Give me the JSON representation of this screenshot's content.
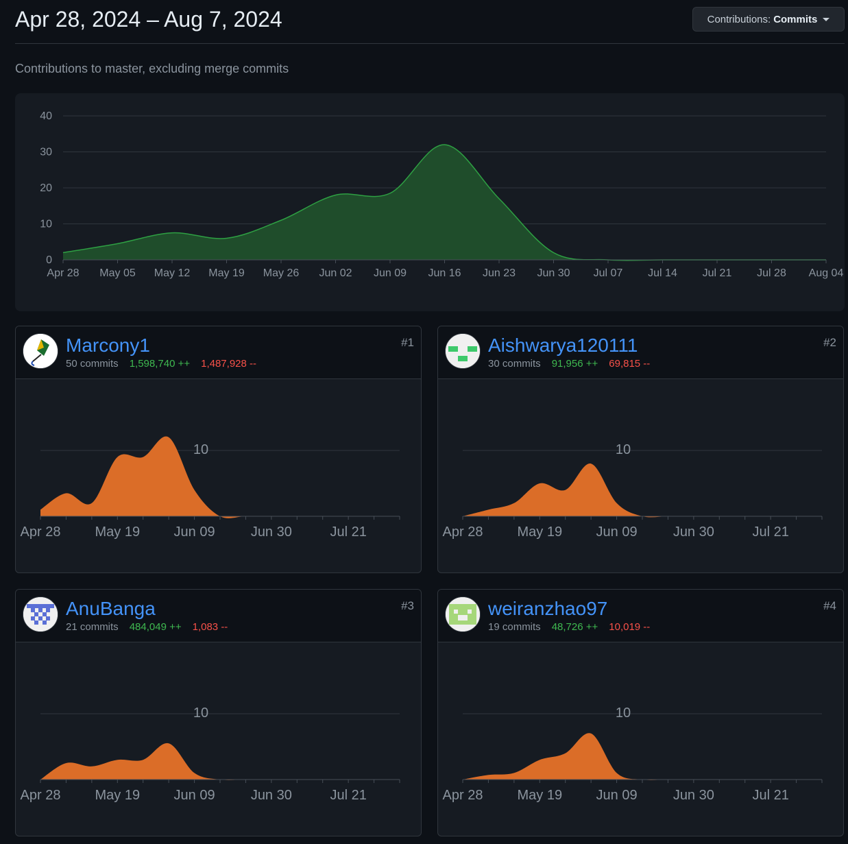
{
  "header": {
    "date_range": "Apr 28, 2024 – Aug 7, 2024",
    "contrib_prefix": "Contributions:",
    "contrib_value": "Commits"
  },
  "subtitle": "Contributions to master, excluding merge commits",
  "colors": {
    "main_fill": "#1f4d2b",
    "main_stroke": "#2ea043",
    "mini_fill": "#db6d28",
    "link": "#4493f8",
    "adds": "#3fb950",
    "dels": "#f85149"
  },
  "chart_data": [
    {
      "type": "area",
      "title": "",
      "xlabel": "",
      "ylabel": "",
      "x_ticks": [
        "Apr 28",
        "May 05",
        "May 12",
        "May 19",
        "May 26",
        "Jun 02",
        "Jun 09",
        "Jun 16",
        "Jun 23",
        "Jun 30",
        "Jul 07",
        "Jul 14",
        "Jul 21",
        "Jul 28",
        "Aug 04"
      ],
      "y_ticks": [
        0,
        10,
        20,
        30,
        40
      ],
      "ylim": [
        0,
        40
      ],
      "grid": true,
      "series": [
        {
          "values": [
            2,
            4.5,
            7.5,
            6,
            11,
            18,
            18.5,
            32,
            17,
            2,
            0,
            0,
            0,
            0,
            0
          ]
        }
      ]
    },
    {
      "type": "area",
      "owner": "Marcony1",
      "x_ticks": [
        "Apr 28",
        "May 19",
        "Jun 09",
        "Jun 30",
        "Jul 21"
      ],
      "y_ticks": [
        10
      ],
      "ylim": [
        0,
        12.5
      ],
      "series": [
        {
          "values": [
            1,
            3.5,
            2,
            9,
            9,
            12,
            4,
            0,
            0,
            0,
            0,
            0,
            0,
            0,
            0
          ]
        }
      ]
    },
    {
      "type": "area",
      "owner": "Aishwarya120111",
      "x_ticks": [
        "Apr 28",
        "May 19",
        "Jun 09",
        "Jun 30",
        "Jul 21"
      ],
      "y_ticks": [
        10
      ],
      "ylim": [
        0,
        12.5
      ],
      "series": [
        {
          "values": [
            0,
            1,
            2,
            5,
            4,
            8,
            2,
            0,
            0,
            0,
            0,
            0,
            0,
            0,
            0
          ]
        }
      ]
    },
    {
      "type": "area",
      "owner": "AnuBanga",
      "x_ticks": [
        "Apr 28",
        "May 19",
        "Jun 09",
        "Jun 30",
        "Jul 21"
      ],
      "y_ticks": [
        10
      ],
      "ylim": [
        0,
        12.5
      ],
      "series": [
        {
          "values": [
            0,
            2.5,
            2,
            3,
            3,
            5.5,
            1,
            0,
            0,
            0,
            0,
            0,
            0,
            0,
            0
          ]
        }
      ]
    },
    {
      "type": "area",
      "owner": "weiranzhao97",
      "x_ticks": [
        "Apr 28",
        "May 19",
        "Jun 09",
        "Jun 30",
        "Jul 21"
      ],
      "y_ticks": [
        10
      ],
      "ylim": [
        0,
        12.5
      ],
      "series": [
        {
          "values": [
            0,
            0.7,
            1,
            3,
            4,
            7,
            1,
            0,
            0,
            0,
            0,
            0,
            0,
            0,
            0
          ]
        }
      ]
    }
  ],
  "contributors": [
    {
      "name": "Marcony1",
      "commits": "50 commits",
      "adds": "1,598,740 ++",
      "dels": "1,487,928 --",
      "rank": "#1",
      "avatar_icon": "kite-icon"
    },
    {
      "name": "Aishwarya120111",
      "commits": "30 commits",
      "adds": "91,956 ++",
      "dels": "69,815 --",
      "rank": "#2",
      "avatar_icon": "identicon"
    },
    {
      "name": "AnuBanga",
      "commits": "21 commits",
      "adds": "484,049 ++",
      "dels": "1,083 --",
      "rank": "#3",
      "avatar_icon": "identicon"
    },
    {
      "name": "weiranzhao97",
      "commits": "19 commits",
      "adds": "48,726 ++",
      "dels": "10,019 --",
      "rank": "#4",
      "avatar_icon": "identicon"
    }
  ]
}
